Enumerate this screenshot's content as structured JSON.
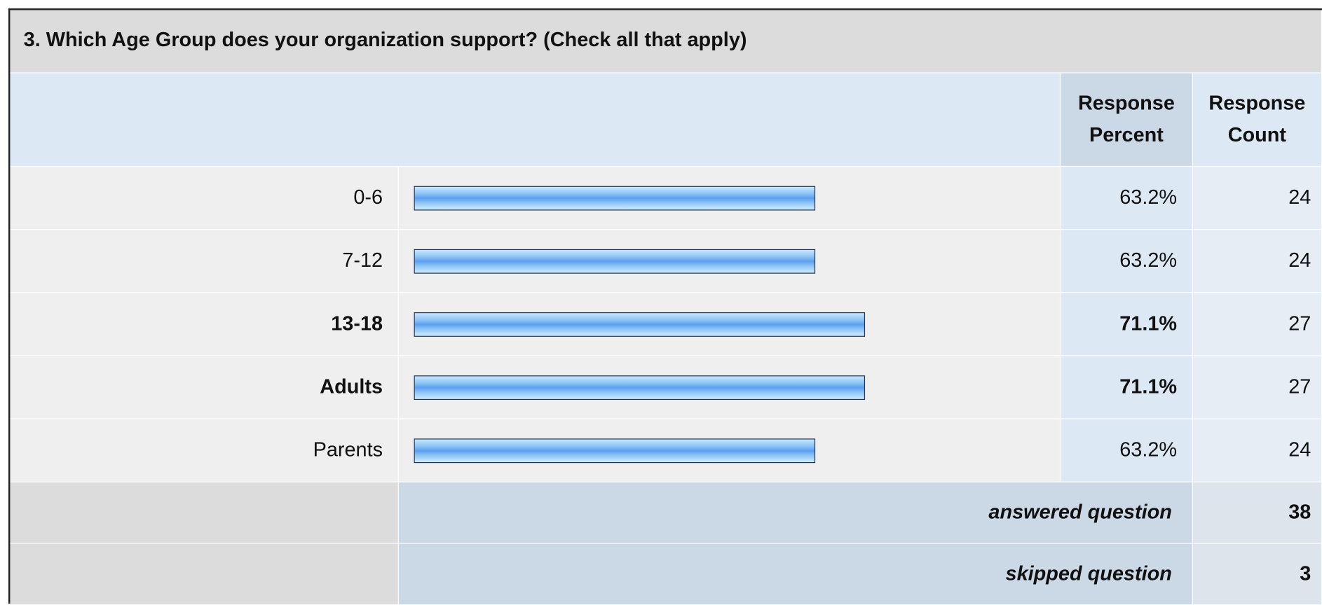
{
  "title": "3. Which Age Group does your organization support? (Check all that apply)",
  "table": {
    "headers": [
      "Response Percent",
      "Response Count"
    ],
    "rows": [
      {
        "label": "0-6",
        "percent": 63.2,
        "percent_label": "63.2%",
        "count": 24,
        "bold": false
      },
      {
        "label": "7-12",
        "percent": 63.2,
        "percent_label": "63.2%",
        "count": 24,
        "bold": false
      },
      {
        "label": "13-18",
        "percent": 71.1,
        "percent_label": "71.1%",
        "count": 27,
        "bold": true
      },
      {
        "label": "Adults",
        "percent": 71.1,
        "percent_label": "71.1%",
        "count": 27,
        "bold": true
      },
      {
        "label": "Parents",
        "percent": 63.2,
        "percent_label": "63.2%",
        "count": 24,
        "bold": false
      }
    ],
    "footer": [
      {
        "label": "answered question",
        "count": 38
      },
      {
        "label": "skipped question",
        "count": 3
      }
    ]
  }
}
